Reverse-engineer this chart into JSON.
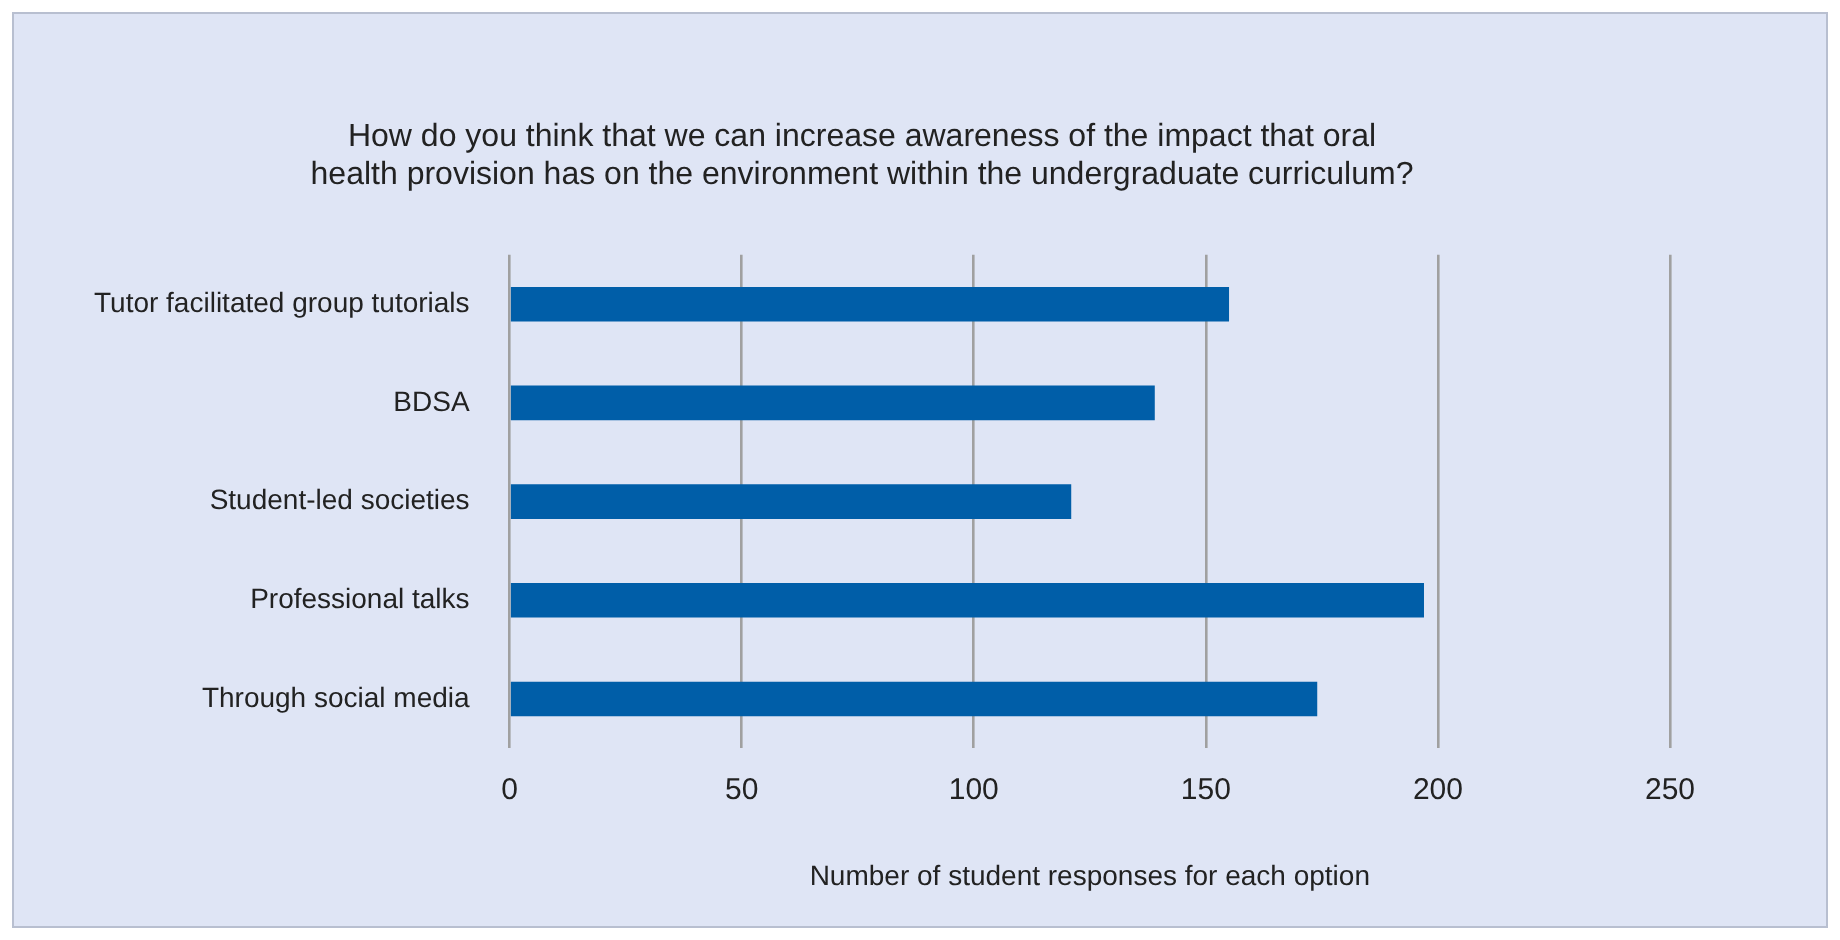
{
  "chart_data": {
    "type": "bar",
    "orientation": "horizontal",
    "title": [
      "How do you think that we can increase awareness of the impact that oral",
      "health provision has on the environment within the undergraduate curriculum?"
    ],
    "categories": [
      "Tutor facilitated group tutorials",
      "BDSA",
      "Student-led societies",
      "Professional talks",
      "Through social media"
    ],
    "values": [
      155,
      139,
      121,
      197,
      174
    ],
    "color": "#005ea8",
    "xlim": [
      0,
      250
    ],
    "xticks": [
      0,
      50,
      100,
      150,
      200,
      250
    ],
    "xlabel": "Number of student responses for each option",
    "grid": "x"
  }
}
